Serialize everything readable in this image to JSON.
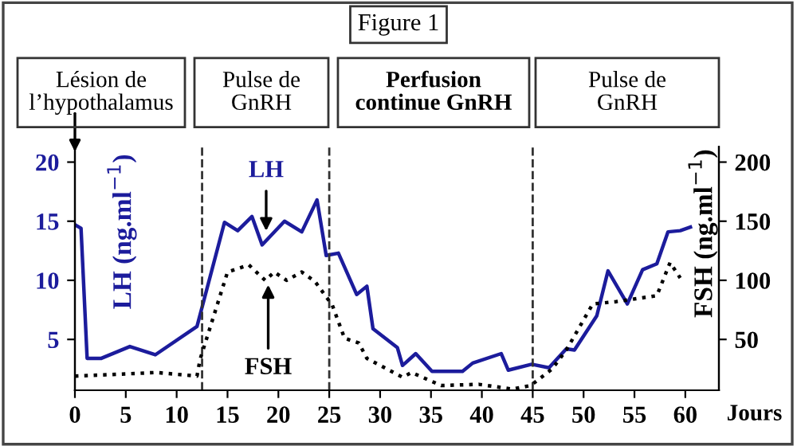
{
  "chart_data": {
    "type": "line",
    "title": "Figure 1",
    "xlabel": "Jours",
    "ylabel": "LH (ng.ml$^{−1}$)",
    "y2label": "FSH (ng.ml$^{−1}$)",
    "xlim": [
      0,
      63.3
    ],
    "xticks": [
      0,
      5,
      10,
      15,
      20,
      25,
      30,
      35,
      40,
      45,
      50,
      55,
      60
    ],
    "ylim": [
      0.7,
      21.3
    ],
    "yticks": [
      5,
      10,
      15,
      20
    ],
    "y2lim": [
      7,
      213
    ],
    "y2ticks": [
      50,
      100,
      150,
      200
    ],
    "grid": false,
    "legend": false,
    "marker": "none",
    "series": [
      {
        "color": "#1c1c9c",
        "line_style": "solid",
        "x": [
          0,
          0.6,
          1.2,
          2.6,
          5.4,
          7.9,
          12,
          14.7,
          16,
          17.4,
          18.4,
          20.6,
          22.3,
          23.8,
          24.7,
          25.9,
          27.7,
          28.7,
          29.3,
          31.7,
          32.2,
          33.5,
          35.1,
          38.1,
          39.1,
          41.9,
          42.6,
          44.9,
          46.6,
          48.3,
          49.1,
          51.3,
          52.4,
          54.3,
          55.8,
          57.2,
          58.3,
          59.5,
          60.5
        ],
        "values": [
          14.7,
          14.4,
          3.4,
          3.4,
          4.4,
          3.7,
          6.1,
          14.9,
          14.2,
          15.4,
          13.0,
          15.0,
          14.1,
          16.8,
          12.1,
          12.3,
          8.8,
          9.5,
          5.9,
          4.3,
          2.8,
          3.8,
          2.3,
          2.3,
          3.0,
          3.8,
          2.4,
          2.9,
          2.6,
          4.2,
          4.1,
          7.0,
          10.8,
          8.0,
          10.9,
          11.4,
          14.1,
          14.2,
          14.5
        ]
      },
      {
        "color": "#000000",
        "line_style": "dotted",
        "axis": "y2",
        "x": [
          0,
          5.4,
          8,
          12,
          12.3,
          15,
          17.1,
          18.7,
          19.6,
          20.8,
          22.3,
          23.6,
          25.3,
          26.5,
          27.9,
          28.7,
          32.2,
          33.1,
          36,
          39.7,
          43,
          44.8,
          46.9,
          48.3,
          50.9,
          53.2,
          57.2,
          58.5,
          59.5
        ],
        "values": [
          19,
          21,
          22,
          19,
          33,
          107,
          113,
          100,
          107,
          100,
          107,
          99,
          79,
          51,
          47,
          34,
          18,
          22,
          11,
          12,
          8,
          11,
          25,
          41,
          80,
          82,
          87,
          115,
          102
        ]
      }
    ],
    "ref_lines": [
      {
        "axis": "x",
        "value": 12.5,
        "line_style": "dashed",
        "color": "#333333"
      },
      {
        "axis": "x",
        "value": 25,
        "line_style": "dashed",
        "color": "#333333"
      },
      {
        "axis": "x",
        "value": 45,
        "line_style": "dashed",
        "color": "#333333"
      }
    ],
    "annotations": [
      "Lésion de\nl’hypothalamus",
      "Pulse de\nGnRH",
      "Perfusion\ncontinue GnRH",
      "Pulse de\nGnRH",
      {
        "text": "LH",
        "x": 18.8,
        "y": 13.8
      },
      {
        "text": "FSH",
        "x": 19,
        "y": 10
      }
    ]
  }
}
